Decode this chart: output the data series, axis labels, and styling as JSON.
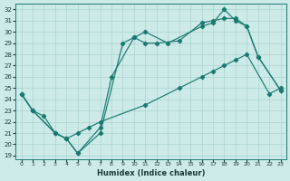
{
  "xlabel": "Humidex (Indice chaleur)",
  "bg_color": "#cceae8",
  "grid_color": "#aad4d2",
  "line_color": "#1a7a6e",
  "ylim_min": 18.7,
  "ylim_max": 32.5,
  "xlim_min": -0.5,
  "xlim_max": 23.5,
  "yticks": [
    19,
    20,
    21,
    22,
    23,
    24,
    25,
    26,
    27,
    28,
    29,
    30,
    31,
    32
  ],
  "xticks": [
    0,
    1,
    2,
    3,
    4,
    5,
    6,
    7,
    8,
    9,
    10,
    11,
    12,
    13,
    14,
    15,
    16,
    17,
    18,
    19,
    20,
    21,
    22,
    23
  ],
  "line1_x": [
    0,
    1,
    3,
    4,
    5,
    7,
    9,
    10,
    11,
    13,
    16,
    17,
    18,
    19,
    20,
    21,
    23
  ],
  "line1_y": [
    24.5,
    23.0,
    21.0,
    20.5,
    19.2,
    21.0,
    29.0,
    29.5,
    30.0,
    29.0,
    30.5,
    30.8,
    32.0,
    31.0,
    30.5,
    27.8,
    24.8
  ],
  "line2_x": [
    0,
    1,
    3,
    4,
    5,
    7,
    8,
    10,
    11,
    12,
    14,
    16,
    17,
    18,
    19,
    20,
    21,
    23
  ],
  "line2_y": [
    24.5,
    23.0,
    21.0,
    20.5,
    19.2,
    21.5,
    26.0,
    29.5,
    29.0,
    29.0,
    29.2,
    30.8,
    31.0,
    31.2,
    31.2,
    30.5,
    27.8,
    24.8
  ],
  "line3_x": [
    0,
    1,
    2,
    3,
    4,
    5,
    6,
    7,
    11,
    14,
    16,
    17,
    18,
    19,
    20,
    22,
    23
  ],
  "line3_y": [
    24.5,
    23.0,
    22.5,
    21.0,
    20.5,
    21.0,
    21.5,
    22.0,
    23.5,
    25.0,
    26.0,
    26.5,
    27.0,
    27.5,
    28.0,
    24.5,
    25.0
  ]
}
